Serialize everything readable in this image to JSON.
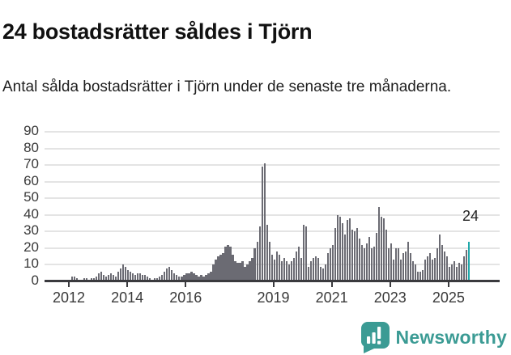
{
  "header": {
    "title": "24 bostadsrätter såldes i Tjörn",
    "subtitle": "Antal sålda bostadsrätter i Tjörn under de senaste tre månaderna."
  },
  "chart_data": {
    "type": "bar",
    "title": "24 bostadsrätter såldes i Tjörn",
    "frequency": "monthly",
    "start": "2011-06",
    "end": "2025-09",
    "values": [
      0,
      0,
      1,
      1,
      1,
      0,
      1,
      1,
      3,
      3,
      2,
      1,
      1,
      2,
      2,
      1,
      2,
      2,
      3,
      5,
      6,
      4,
      3,
      4,
      5,
      4,
      3,
      6,
      8,
      10,
      9,
      7,
      6,
      5,
      4,
      5,
      5,
      4,
      4,
      3,
      2,
      1,
      2,
      2,
      3,
      4,
      6,
      8,
      9,
      7,
      5,
      4,
      3,
      3,
      4,
      5,
      5,
      6,
      5,
      4,
      3,
      4,
      3,
      4,
      5,
      6,
      10,
      13,
      15,
      16,
      17,
      21,
      22,
      21,
      16,
      12,
      11,
      11,
      12,
      9,
      10,
      12,
      14,
      20,
      24,
      33,
      69,
      71,
      34,
      24,
      16,
      13,
      18,
      16,
      12,
      14,
      12,
      10,
      12,
      14,
      18,
      21,
      14,
      34,
      33,
      9,
      12,
      14,
      15,
      14,
      9,
      8,
      10,
      17,
      20,
      22,
      32,
      40,
      39,
      35,
      28,
      37,
      38,
      31,
      30,
      32,
      26,
      22,
      20,
      23,
      27,
      20,
      21,
      29,
      45,
      39,
      38,
      31,
      20,
      23,
      13,
      20,
      20,
      13,
      17,
      18,
      24,
      17,
      12,
      10,
      6,
      6,
      7,
      13,
      15,
      17,
      13,
      14,
      20,
      28,
      22,
      18,
      15,
      9,
      10,
      12,
      9,
      11,
      10,
      15,
      19,
      24
    ],
    "highlight": {
      "index": 171,
      "value": 24,
      "label": "24"
    },
    "yticks": [
      0,
      10,
      20,
      30,
      40,
      50,
      60,
      70,
      80,
      90
    ],
    "ylim": [
      0,
      90
    ],
    "xticks": [
      2012,
      2014,
      2016,
      2019,
      2021,
      2023,
      2025
    ],
    "grid": true,
    "legend": "none",
    "colors": {
      "bar": "#6b6b73",
      "highlight": "#20a8aa",
      "grid": "#e4e4e4",
      "axis": "#3a3a3e",
      "tick_text": "#3a3a3a"
    }
  },
  "annotation": {
    "text": "24"
  },
  "footer": {
    "brand": "Newsworthy",
    "brand_color": "#3b9b94"
  }
}
